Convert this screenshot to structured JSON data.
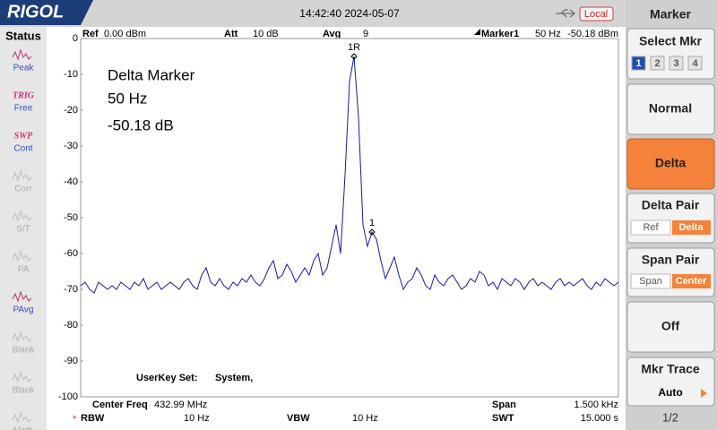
{
  "header": {
    "logo": "RIGOL",
    "datetime": "14:42:40 2024-05-07",
    "remote": "Local"
  },
  "status": {
    "title": "Status",
    "items": [
      {
        "label": "Peak",
        "active": true
      },
      {
        "tag": "TRIG",
        "label": "Free",
        "active": true
      },
      {
        "tag": "SWP",
        "label": "Cont",
        "active": true
      },
      {
        "label": "Corr",
        "active": false
      },
      {
        "label": "S/T",
        "active": false
      },
      {
        "label": "PA",
        "active": false
      },
      {
        "label": "PAvg",
        "active": true
      },
      {
        "label": "Blank",
        "active": false
      },
      {
        "label": "Blank",
        "active": false
      },
      {
        "label": "Math",
        "active": false
      }
    ]
  },
  "top_info": {
    "ref_label": "Ref",
    "ref": "0.00 dBm",
    "att_label": "Att",
    "att": "10 dB",
    "avg_label": "Avg",
    "avg": "9",
    "marker_label": "Marker1",
    "marker_freq": "50 Hz",
    "marker_level": "-50.18 dBm"
  },
  "bottom_info": {
    "center_label": "Center Freq",
    "center": "432.99 MHz",
    "span_label": "Span",
    "span": "1.500 kHz",
    "star": "*",
    "rbw_label": "RBW",
    "rbw": "10 Hz",
    "vbw_label": "VBW",
    "vbw": "10 Hz",
    "swt_label": "SWT",
    "swt": "15.000 s"
  },
  "chart_data": {
    "type": "line",
    "color": "#1a1aa8",
    "annotations": [
      "Delta Marker",
      "50 Hz",
      "-50.18 dB"
    ],
    "userkey": [
      "UserKey Set:",
      "System,"
    ],
    "ylim": [
      -100,
      0
    ],
    "yticks": [
      0,
      -10,
      -20,
      -30,
      -40,
      -50,
      -60,
      -70,
      -80,
      -90,
      -100
    ],
    "grid": false,
    "markers": [
      {
        "label": "1R",
        "x": 61,
        "y": -5
      },
      {
        "label": "1",
        "x": 65,
        "y": -54
      }
    ],
    "values": [
      -69,
      -68,
      -70,
      -71,
      -68,
      -69,
      -70,
      -69,
      -70,
      -68,
      -69,
      -70,
      -68,
      -69,
      -67,
      -70,
      -69,
      -68,
      -70,
      -69,
      -68,
      -69,
      -70,
      -68,
      -67,
      -69,
      -70,
      -66,
      -64,
      -68,
      -69,
      -67,
      -69,
      -70,
      -68,
      -69,
      -67,
      -68,
      -66,
      -68,
      -69,
      -67,
      -64,
      -62,
      -67,
      -66,
      -63,
      -65,
      -68,
      -66,
      -64,
      -66,
      -62,
      -60,
      -66,
      -64,
      -58,
      -52,
      -60,
      -38,
      -12,
      -5,
      -22,
      -52,
      -58,
      -54,
      -56,
      -62,
      -67,
      -64,
      -61,
      -66,
      -70,
      -68,
      -67,
      -64,
      -66,
      -69,
      -70,
      -66,
      -68,
      -69,
      -67,
      -66,
      -68,
      -70,
      -69,
      -67,
      -68,
      -65,
      -66,
      -69,
      -68,
      -70,
      -67,
      -68,
      -69,
      -67,
      -68,
      -70,
      -68,
      -67,
      -69,
      -68,
      -69,
      -70,
      -68,
      -67,
      -69,
      -68,
      -69,
      -68,
      -67,
      -69,
      -70,
      -68,
      -69,
      -67,
      -68,
      -69,
      -68
    ]
  },
  "menu": {
    "title": "Marker",
    "select": "Select Mkr",
    "mkrs": [
      "1",
      "2",
      "3",
      "4"
    ],
    "normal": "Normal",
    "delta": "Delta",
    "delta_pair": "Delta Pair",
    "ref": "Ref",
    "delta_opt": "Delta",
    "span_pair": "Span Pair",
    "span_opt": "Span",
    "center_opt": "Center",
    "off": "Off",
    "mkr_trace": "Mkr Trace",
    "auto": "Auto",
    "page": "1/2"
  }
}
